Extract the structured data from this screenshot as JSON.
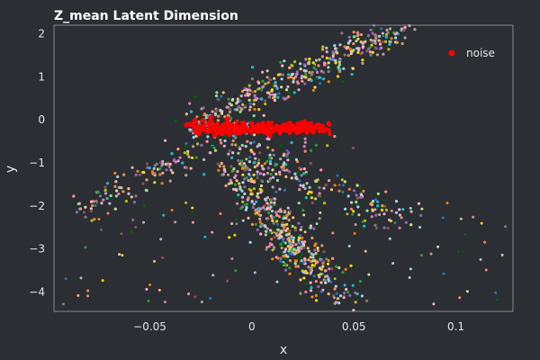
{
  "chart_data": {
    "type": "scatter",
    "title": "Z_mean Latent Dimension",
    "xlabel": "x",
    "ylabel": "y",
    "xlim": [
      -0.097,
      0.128
    ],
    "ylim": [
      -4.45,
      2.2
    ],
    "x_ticks": [
      -0.05,
      0,
      0.05,
      0.1
    ],
    "x_tick_labels": [
      "−0.05",
      "0",
      "0.05",
      "0.1"
    ],
    "y_ticks": [
      -4,
      -3,
      -2,
      -1,
      0,
      1,
      2
    ],
    "y_tick_labels": [
      "−4",
      "−3",
      "−2",
      "−1",
      "0",
      "1",
      "2"
    ],
    "grid": false,
    "legend": {
      "position": "top-right",
      "entries": [
        {
          "label": "noise",
          "color": "#ff0000"
        }
      ]
    },
    "colors": {
      "background": "#2b2e33",
      "plot_background": "#2b2e33",
      "axes_edge": "#9aa0a6",
      "noise": "#ff0000"
    },
    "palette": [
      "#ff7f0e",
      "#1f77b4",
      "#2ca02c",
      "#9467bd",
      "#8c564b",
      "#e377c2",
      "#7f7f7f",
      "#bcbd22",
      "#17becf",
      "#98df8a",
      "#ff9896",
      "#c5b0d5",
      "#ffbb78",
      "#aec7e8",
      "#c49c94",
      "#f7b6d2",
      "#dbdb8d",
      "#9edae5",
      "#ffd700",
      "#006400",
      "#e9a3c9",
      "#fc8d62"
    ],
    "series": [
      {
        "name": "noise",
        "color": "#ff0000",
        "points": [
          {
            "x": -0.028,
            "y": -0.02
          },
          {
            "x": -0.02,
            "y": -0.05
          },
          {
            "x": -0.012,
            "y": -0.08
          },
          {
            "x": -0.004,
            "y": -0.1
          },
          {
            "x": 0.004,
            "y": -0.12
          },
          {
            "x": 0.012,
            "y": -0.15
          },
          {
            "x": 0.02,
            "y": -0.18
          },
          {
            "x": -0.024,
            "y": -0.22
          },
          {
            "x": -0.016,
            "y": -0.24
          },
          {
            "x": -0.008,
            "y": -0.26
          },
          {
            "x": 0.0,
            "y": -0.28
          },
          {
            "x": 0.008,
            "y": -0.3
          },
          {
            "x": -0.02,
            "y": 0.05
          },
          {
            "x": -0.012,
            "y": 0.02
          },
          {
            "x": 0.016,
            "y": -0.2
          },
          {
            "x": -0.026,
            "y": -0.32
          },
          {
            "x": -0.018,
            "y": -0.35
          },
          {
            "x": 0.024,
            "y": -0.25
          },
          {
            "x": 0.03,
            "y": -0.27
          },
          {
            "x": -0.032,
            "y": -0.12
          }
        ]
      },
      {
        "name": "clusters",
        "regions": [
          {
            "x0": -0.03,
            "y0": -0.2,
            "x1": 0.072,
            "y1": 2.15,
            "spread": 0.006,
            "count": 420
          },
          {
            "x0": -0.01,
            "y0": -0.9,
            "x1": 0.03,
            "y1": -3.7,
            "spread": 0.006,
            "count": 330
          },
          {
            "x0": 0.0,
            "y0": -0.9,
            "x1": 0.075,
            "y1": -2.3,
            "spread": 0.006,
            "count": 160
          },
          {
            "x0": -0.03,
            "y0": -0.8,
            "x1": -0.085,
            "y1": -2.1,
            "spread": 0.005,
            "count": 110
          },
          {
            "x0": 0.005,
            "y0": -2.1,
            "x1": 0.05,
            "y1": -4.3,
            "spread": 0.006,
            "count": 120
          },
          {
            "x0": -0.02,
            "y0": -0.5,
            "x1": 0.03,
            "y1": -0.9,
            "spread": 0.01,
            "count": 90
          }
        ],
        "scatter_box": {
          "x0": -0.096,
          "x1": 0.125,
          "y0": -4.3,
          "y1": -1.9,
          "count": 110
        }
      }
    ]
  }
}
